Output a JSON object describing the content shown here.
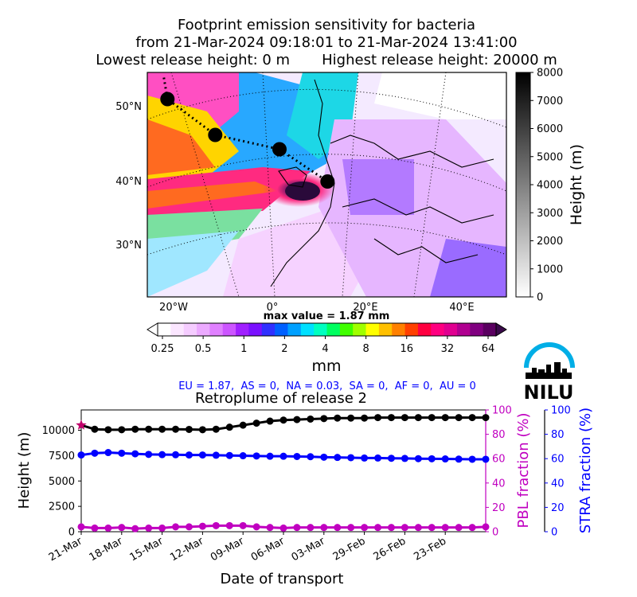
{
  "title": {
    "line1": "Footprint emission sensitivity for bacteria",
    "line2": "from 21-Mar-2024 09:18:01 to 21-Mar-2024 13:41:00",
    "line3": "Lowest release height: 0 m       Highest release height: 20000 m"
  },
  "logo": {
    "text": "NILU"
  },
  "colors": {
    "black_series": "#000000",
    "pbl_series": "#c000c0",
    "stra_series": "#0000ff",
    "release_marker": "#c0006a"
  },
  "chart_data": [
    {
      "type": "heatmap",
      "map_lat_ticks": [
        "50°N",
        "40°N",
        "30°N"
      ],
      "map_lon_ticks": [
        "20°W",
        "0°",
        "20°E",
        "40°E"
      ],
      "trajectory_points": [
        {
          "lon": -22,
          "lat": 51.5
        },
        {
          "lon": -12,
          "lat": 46.5
        },
        {
          "lon": 1,
          "lat": 44.5
        },
        {
          "lon": 11,
          "lat": 40
        }
      ],
      "colorbar_height": {
        "label": "Height (m)",
        "ticks": [
          0,
          1000,
          2000,
          3000,
          4000,
          5000,
          6000,
          7000,
          8000
        ],
        "range": [
          0,
          8000
        ]
      },
      "colorbar_mm": {
        "unit": "mm",
        "ticks": [
          "0.25",
          "0.5",
          "1",
          "2",
          "4",
          "8",
          "16",
          "32",
          "64"
        ],
        "max_label": "max value = 1.87 mm"
      },
      "fractions_text": "EU = 1.87,  AS = 0,  NA = 0.03,  SA = 0,  AF = 0,  AU = 0"
    },
    {
      "type": "line",
      "title": "Retroplume of release 2",
      "xlabel": "Date of transport",
      "x_ticks": [
        "21-Mar",
        "18-Mar",
        "15-Mar",
        "12-Mar",
        "09-Mar",
        "06-Mar",
        "03-Mar",
        "29-Feb",
        "26-Feb",
        "23-Feb"
      ],
      "xlim_days_before_release": [
        0,
        30
      ],
      "y_left": {
        "label": "Height (m)",
        "ticks": [
          0,
          2500,
          5000,
          7500,
          10000
        ],
        "ylim": [
          0,
          12000
        ]
      },
      "y_right1": {
        "label": "PBL fraction (%)",
        "ticks": [
          0,
          20,
          40,
          60,
          80,
          100
        ],
        "ylim": [
          0,
          100
        ]
      },
      "y_right2": {
        "label": "STRA fraction (%)",
        "ticks": [
          0,
          20,
          40,
          60,
          80,
          100
        ],
        "ylim": [
          0,
          100
        ]
      },
      "x_days": [
        0,
        1,
        2,
        3,
        4,
        5,
        6,
        7,
        8,
        9,
        10,
        11,
        12,
        13,
        14,
        15,
        16,
        17,
        18,
        19,
        20,
        21,
        22,
        23,
        24,
        25,
        26,
        27,
        28,
        29,
        30
      ],
      "series": [
        {
          "values": [
            10500,
            10100,
            10050,
            10050,
            10100,
            10100,
            10100,
            10100,
            10080,
            10050,
            10100,
            10300,
            10500,
            10700,
            10900,
            11000,
            11050,
            11100,
            11150,
            11200,
            11200,
            11200,
            11250,
            11250,
            11250,
            11250,
            11250,
            11250,
            11250,
            11250,
            11250
          ],
          "axis": "left",
          "color": "#000000"
        },
        {
          "values": [
            4,
            3,
            3,
            3.5,
            2.5,
            3,
            3,
            4,
            4,
            4.5,
            5,
            5,
            5,
            4,
            3.5,
            3,
            3.5,
            3.5,
            3.5,
            3.5,
            3.5,
            3.5,
            3.5,
            3.5,
            3.5,
            3.5,
            3.5,
            3.5,
            3.5,
            3.5,
            4
          ],
          "axis": "right1",
          "color": "#c000c0"
        },
        {
          "values": [
            63,
            64.5,
            65,
            64.5,
            64,
            63.5,
            63.3,
            63.2,
            63,
            63,
            62.8,
            62.6,
            62.4,
            62.2,
            62,
            62,
            61.8,
            61.6,
            61.2,
            61,
            60.8,
            60.5,
            60.5,
            60.3,
            60.2,
            60,
            59.9,
            59.8,
            59.6,
            59.5,
            59.5
          ],
          "axis": "right2",
          "color": "#0000ff"
        }
      ]
    }
  ]
}
